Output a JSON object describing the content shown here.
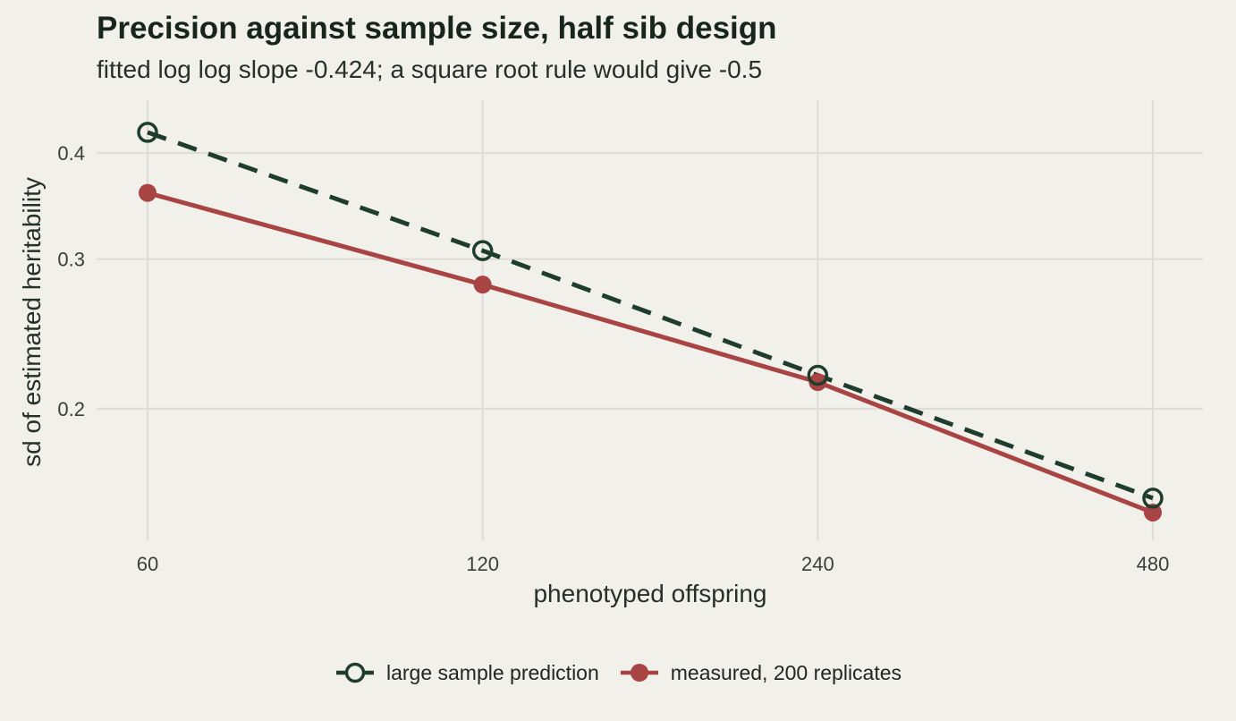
{
  "title": "Precision against sample size, half sib design",
  "subtitle": "fitted log log slope -0.424; a square root rule would give -0.5",
  "colors": {
    "background": "#f2f0ea",
    "grid": "#dfddd6",
    "prediction": "#1f3d2c",
    "measured": "#a84444"
  },
  "chart_data": {
    "type": "line",
    "title": "Precision against sample size, half sib design",
    "subtitle": "fitted log log slope -0.424; a square root rule would give -0.5",
    "xlabel": "phenotyped offspring",
    "ylabel": "sd of estimated heritability",
    "x_scale": "log2",
    "y_scale": "log10",
    "x": [
      60,
      120,
      240,
      480
    ],
    "x_ticks": [
      "60",
      "120",
      "240",
      "480"
    ],
    "y_ticks": [
      "0.2",
      "0.3",
      "0.4"
    ],
    "series": [
      {
        "name": "large sample prediction",
        "values": [
          0.423,
          0.307,
          0.219,
          0.157
        ],
        "line": "dashed",
        "marker": "open-circle",
        "color": "#1f3d2c"
      },
      {
        "name": "measured, 200 replicates",
        "values": [
          0.359,
          0.28,
          0.215,
          0.151
        ],
        "line": "solid",
        "marker": "filled-circle",
        "color": "#a84444"
      }
    ],
    "grid": true,
    "legend": "bottom"
  }
}
